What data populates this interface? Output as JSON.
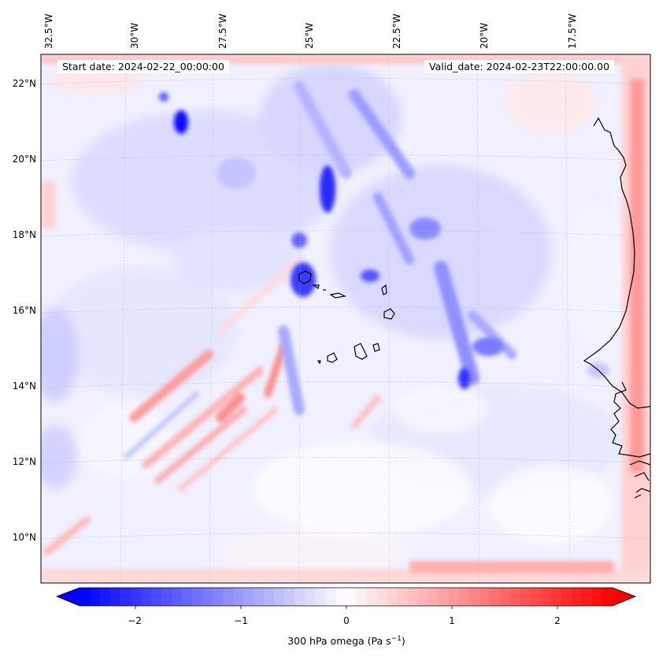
{
  "map": {
    "start_date": "Start date: 2024-02-22_00:00:00",
    "valid_date": "Valid_date: 2024-02-23T22:00:00.00",
    "lon_labels": [
      "32.5°W",
      "30°W",
      "27.5°W",
      "25°W",
      "22.5°W",
      "20°W",
      "17.5°W"
    ],
    "lat_labels": [
      "22°N",
      "20°N",
      "18°N",
      "16°N",
      "14°N",
      "12°N",
      "10°N"
    ],
    "variable": "300 hPa omega",
    "units": "Pa s⁻¹",
    "colorbar": {
      "label_prefix": "300 hPa omega (Pa s",
      "label_exp": "−1",
      "label_suffix": ")",
      "ticks": [
        "−2",
        "−1",
        "0",
        "1",
        "2"
      ],
      "tick_values": [
        -2,
        -1,
        0,
        1,
        2
      ],
      "range": [
        -2.6,
        2.6
      ],
      "colormap": "bwr",
      "extend": "both"
    },
    "colors": {
      "neg": "#0000ff",
      "zero": "#ffffff",
      "pos": "#ff0000",
      "coast": "#000000"
    }
  }
}
